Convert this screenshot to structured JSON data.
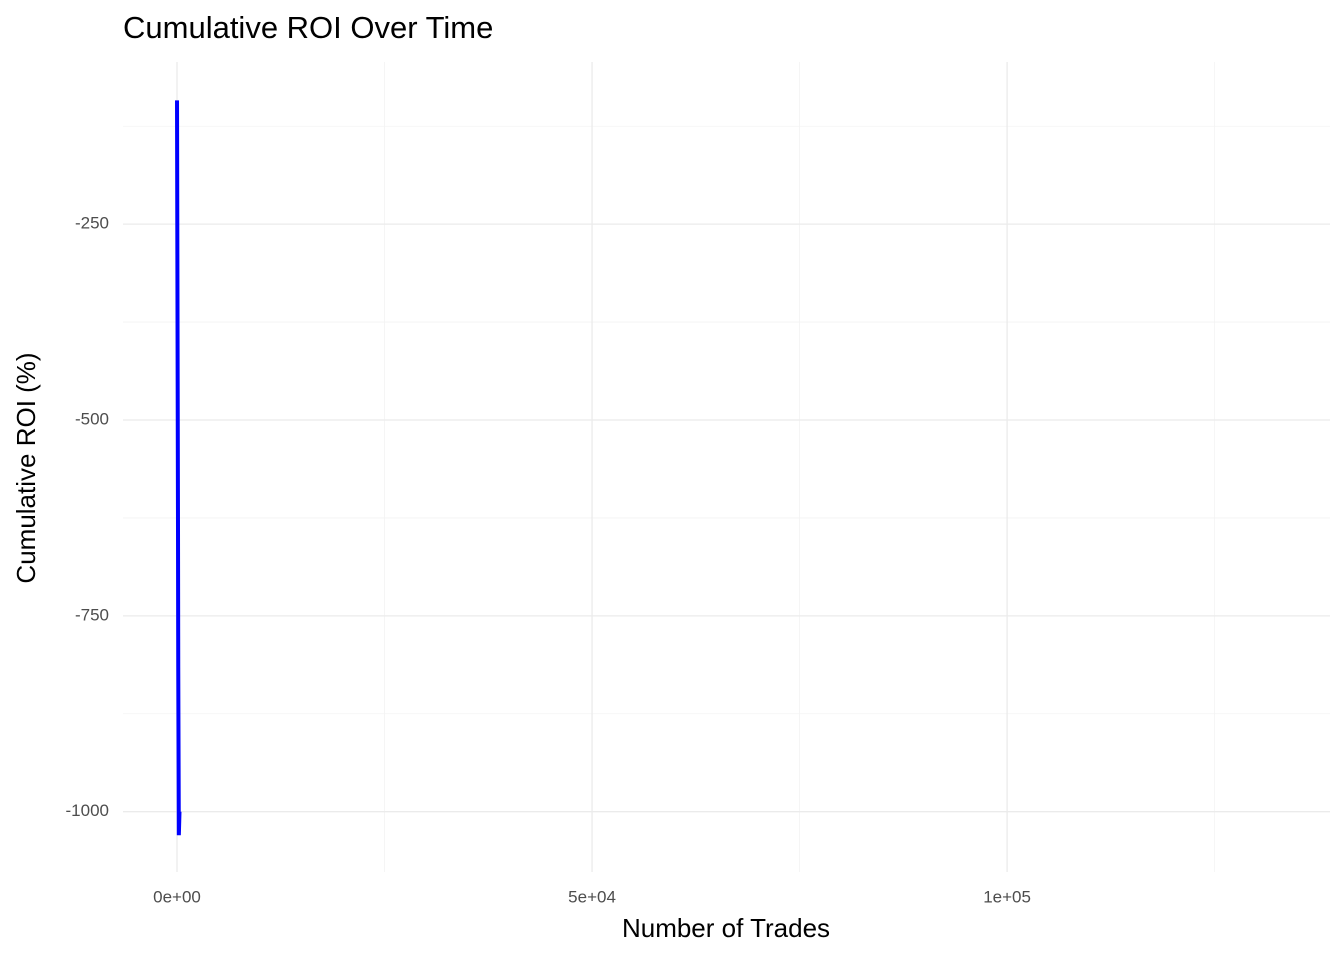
{
  "chart_data": {
    "type": "line",
    "title": "Cumulative ROI Over Time",
    "x_label": "Number of Trades",
    "y_label": "Cumulative ROI (%)",
    "x": [
      1,
      120,
      150,
      220,
      300
    ],
    "series": [
      {
        "color": "#0000ff",
        "values": [
          -92,
          -640,
          -816,
          -1030,
          -1000
        ]
      }
    ],
    "xlim": [
      -6506,
      138900
    ],
    "ylim": [
      -1077,
      -43
    ],
    "xticks": [
      {
        "value": 0,
        "label": "0e+00"
      },
      {
        "value": 50000,
        "label": "5e+04"
      },
      {
        "value": 100000,
        "label": "1e+05"
      }
    ],
    "xminor": [
      25000,
      75000,
      125000
    ],
    "yticks": [
      -250,
      -500,
      -750,
      -1000
    ],
    "yminor": [
      -125,
      -375,
      -625,
      -875
    ],
    "grid": true
  }
}
